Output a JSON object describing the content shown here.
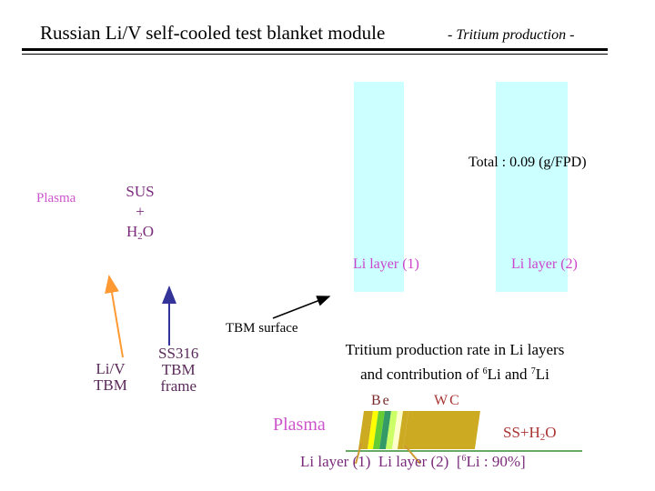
{
  "header": {
    "title": "Russian Li/V self-cooled test blanket module",
    "subtitle": "- Tritium production -"
  },
  "figure": {
    "total_label": "Total : 0.09 (g/FPD)",
    "plasma_label": "Plasma",
    "sus_lines": [
      "SUS",
      "+",
      "H",
      "2",
      "O"
    ],
    "li_layer_1": "Li layer (1)",
    "li_layer_2": "Li layer (2)",
    "tbm_surface": "TBM surface",
    "liv_tbm": [
      "Li/V",
      "TBM"
    ],
    "ss316_frame": [
      "SS316",
      "TBM",
      "frame"
    ]
  },
  "caption": {
    "line1": "Tritium production rate in Li layers",
    "line2_prefix": "and contribution of ",
    "sup6": "6",
    "li": "Li",
    "and": " and ",
    "sup7": "7",
    "li2": "Li"
  },
  "schematic": {
    "be": "Be",
    "wc": "WC",
    "plasma": "Plasma",
    "ss": "SS+H",
    "ss_sub": "2",
    "ss_end": "O",
    "layer1": "Li layer (1)",
    "layer2": "Li layer (2)",
    "enrich_open": "[",
    "enrich_sup": "6",
    "enrich_rest": "Li : 90%]"
  },
  "colors": {
    "band": "#ccffff",
    "arrow_orange": "#ff9933",
    "arrow_blue": "#333399",
    "gold": "#ccaa22"
  }
}
